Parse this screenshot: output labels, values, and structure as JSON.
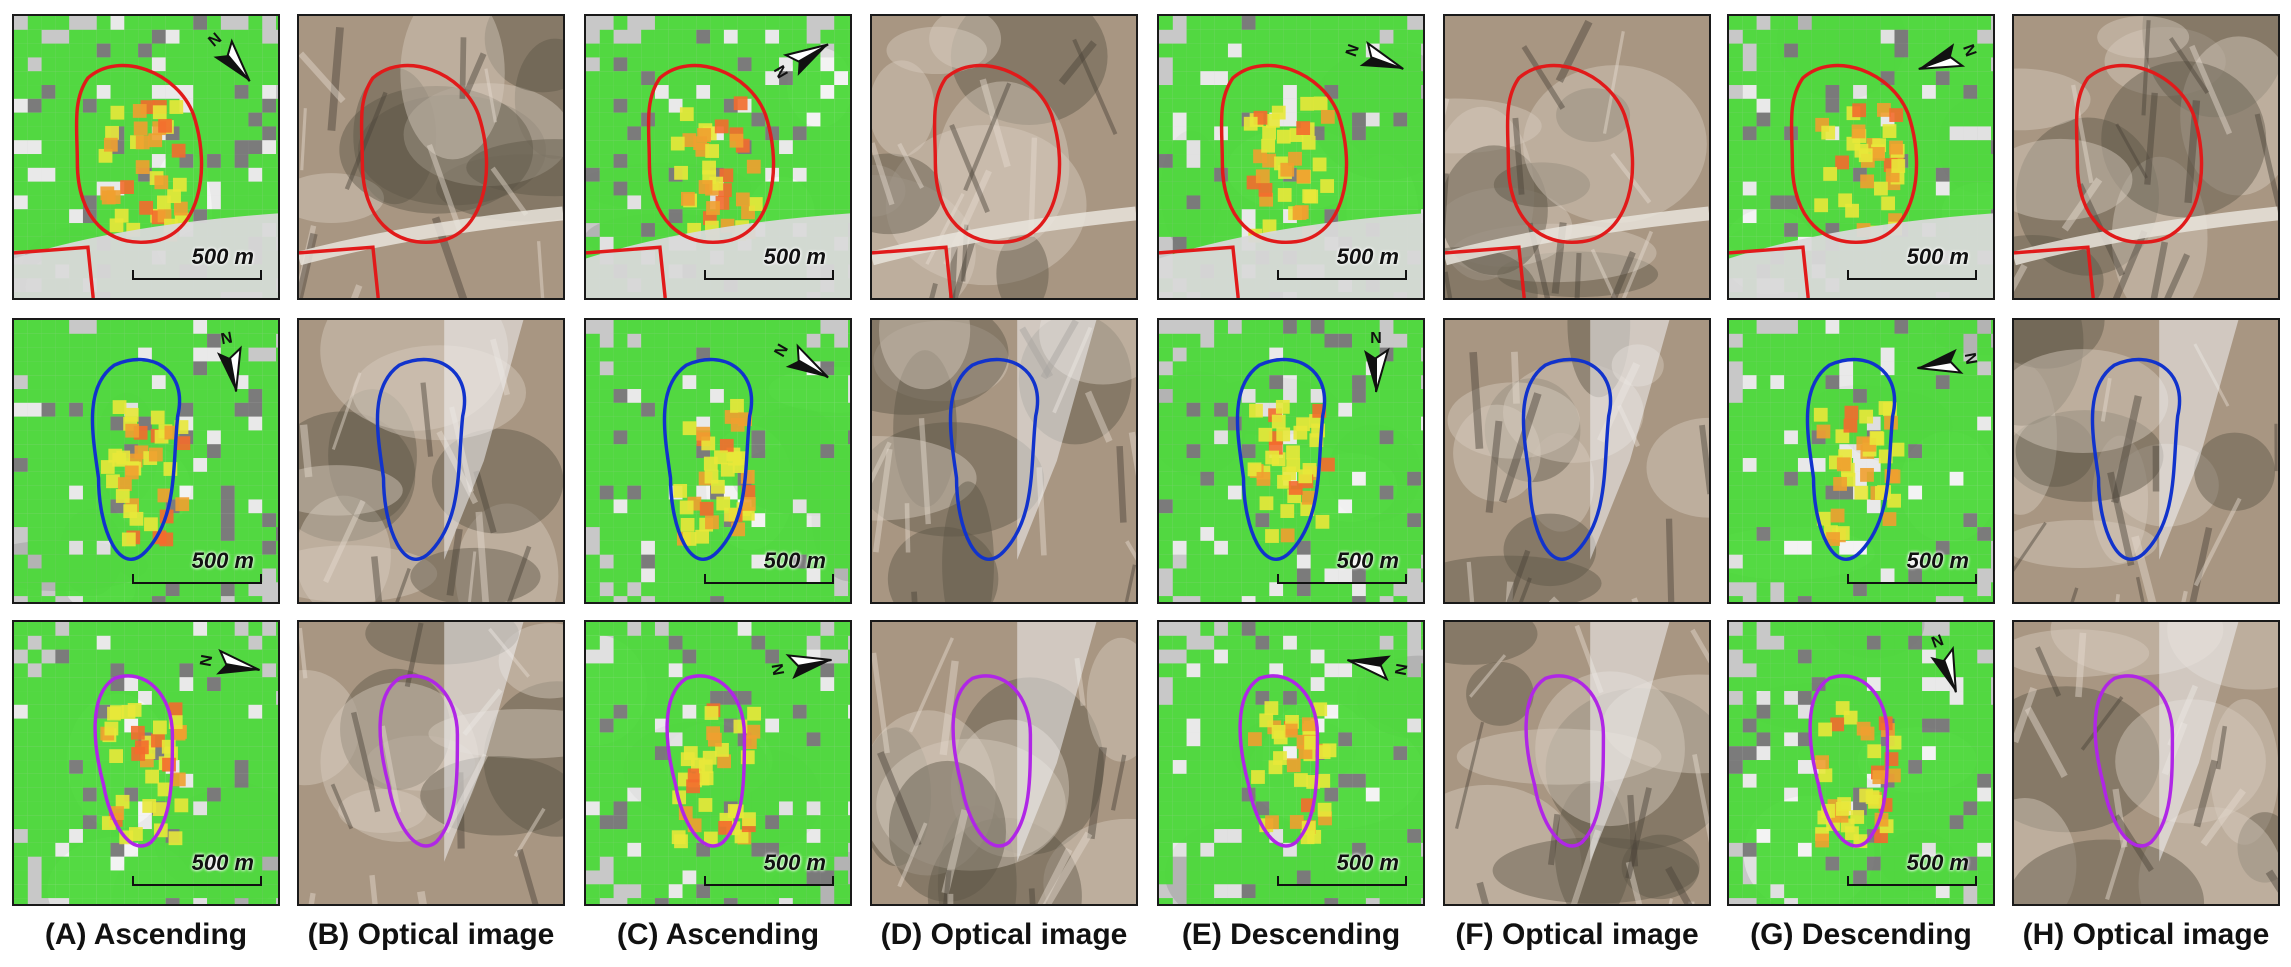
{
  "captions": [
    "(A) Ascending",
    "(B) Optical image",
    "(C) Ascending",
    "(D) Optical image",
    "(E) Descending",
    "(F) Optical image",
    "(G) Descending",
    "(H) Optical image"
  ],
  "columns": [
    {
      "kind": "insar"
    },
    {
      "kind": "optical"
    },
    {
      "kind": "insar"
    },
    {
      "kind": "optical"
    },
    {
      "kind": "insar"
    },
    {
      "kind": "optical"
    },
    {
      "kind": "insar"
    },
    {
      "kind": "optical"
    }
  ],
  "scale_label": "500 m",
  "north_label": "N",
  "rows": [
    {
      "outline_color": "#e11a1a"
    },
    {
      "outline_color": "#1133cc"
    },
    {
      "outline_color": "#b026e6"
    }
  ],
  "colors": {
    "insar_stable": "#4cd93a",
    "insar_moderate": "#e8e83a",
    "insar_high": "#f0a030",
    "insar_nodata": "#c8c8c8",
    "insar_noise": "#777777",
    "optical_base": "#a89682",
    "optical_dark": "#5e5648",
    "optical_light": "#d7cdbf",
    "snow": "#f2f2f4"
  }
}
